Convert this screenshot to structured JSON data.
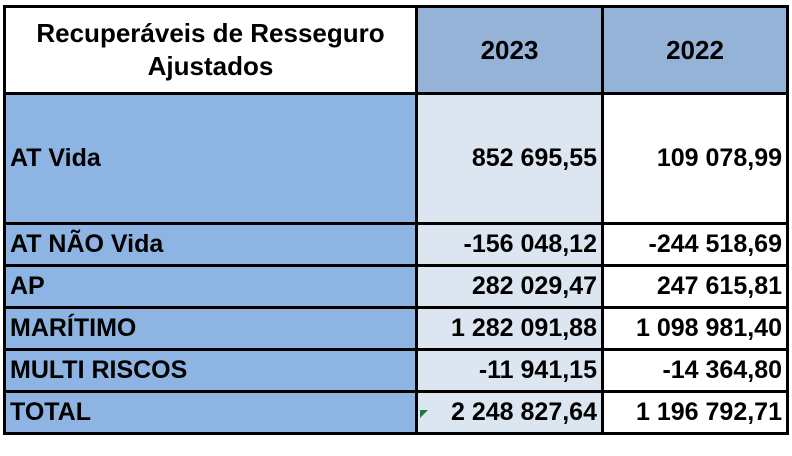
{
  "table": {
    "header": {
      "title_line1": "Recuperáveis de Resseguro",
      "title_line2": "Ajustados",
      "year1": "2023",
      "year2": "2022"
    },
    "rows": [
      {
        "label": "AT  Vida",
        "v2023": "852 695,55",
        "v2022": "109 078,99"
      },
      {
        "label": "AT  NÃO Vida",
        "v2023": "-156 048,12",
        "v2022": "-244 518,69"
      },
      {
        "label": "AP",
        "v2023": "282 029,47",
        "v2022": "247 615,81"
      },
      {
        "label": "MARÍTIMO",
        "v2023": "1 282 091,88",
        "v2022": "1 098 981,40"
      },
      {
        "label": "MULTI RISCOS",
        "v2023": "-11 941,15",
        "v2022": "-14 364,80"
      },
      {
        "label": "TOTAL",
        "v2023": "2 248 827,64",
        "v2022": "1 196 792,71"
      }
    ]
  },
  "colors": {
    "label_fill": "#8db4e2",
    "year_header_fill": "#95b3d7",
    "col2023_fill": "#dce6f1",
    "col2022_fill": "#ffffff",
    "corner_mark": "#1a7f37"
  }
}
